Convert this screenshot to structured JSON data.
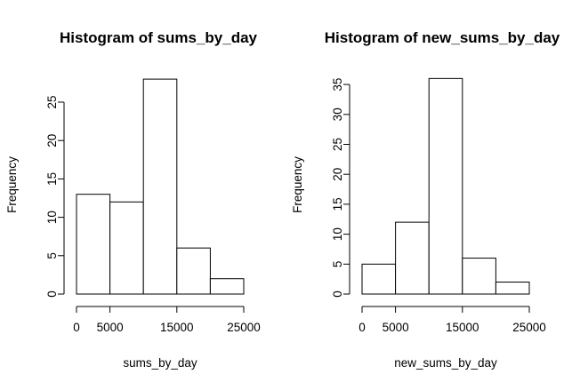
{
  "chart_data": [
    {
      "type": "bar",
      "title": "Histogram of sums_by_day",
      "xlabel": "sums_by_day",
      "ylabel": "Frequency",
      "bins": [
        [
          0,
          5000
        ],
        [
          5000,
          10000
        ],
        [
          10000,
          15000
        ],
        [
          15000,
          20000
        ],
        [
          20000,
          25000
        ]
      ],
      "values": [
        13,
        12,
        28,
        6,
        2
      ],
      "xlim": [
        0,
        25000
      ],
      "ylim": [
        0,
        28
      ],
      "xticks": [
        0,
        5000,
        15000,
        25000
      ],
      "xtick_labels": [
        "0",
        "5000",
        "15000",
        "25000"
      ],
      "yticks": [
        0,
        5,
        10,
        15,
        20,
        25
      ],
      "ytick_labels": [
        "0",
        "5",
        "10",
        "15",
        "20",
        "25"
      ],
      "grid": false
    },
    {
      "type": "bar",
      "title": "Histogram of new_sums_by_day",
      "xlabel": "new_sums_by_day",
      "ylabel": "Frequency",
      "bins": [
        [
          0,
          5000
        ],
        [
          5000,
          10000
        ],
        [
          10000,
          15000
        ],
        [
          15000,
          20000
        ],
        [
          20000,
          25000
        ]
      ],
      "values": [
        5,
        12,
        36,
        6,
        2
      ],
      "xlim": [
        0,
        25000
      ],
      "ylim": [
        0,
        36
      ],
      "xticks": [
        0,
        5000,
        15000,
        25000
      ],
      "xtick_labels": [
        "0",
        "5000",
        "15000",
        "25000"
      ],
      "yticks": [
        0,
        5,
        10,
        15,
        20,
        25,
        30,
        35
      ],
      "ytick_labels": [
        "0",
        "5",
        "10",
        "15",
        "20",
        "25",
        "30",
        "35"
      ],
      "grid": false
    }
  ]
}
